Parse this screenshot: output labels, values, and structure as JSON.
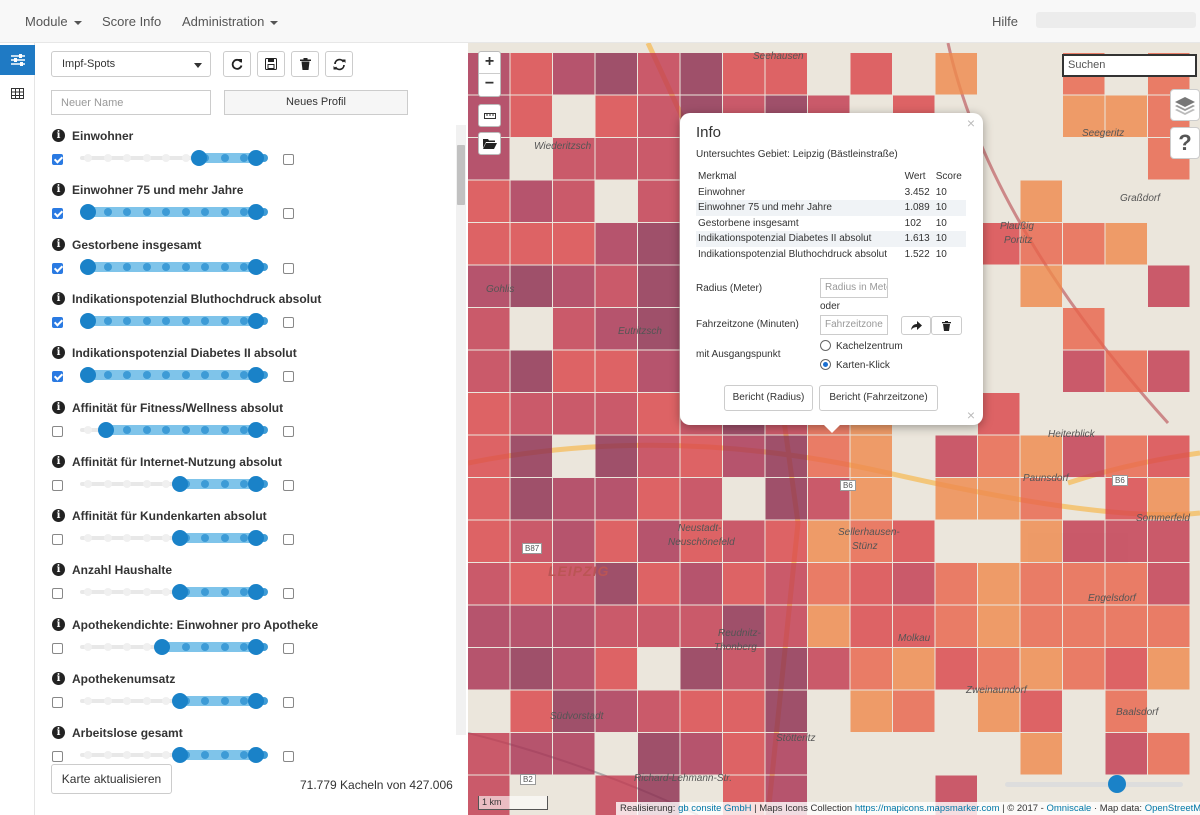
{
  "nav": {
    "module": "Module",
    "score_info": "Score Info",
    "administration": "Administration",
    "help": "Hilfe"
  },
  "profile": {
    "selected": "Impf-Spots",
    "name_placeholder": "Neuer Name",
    "new_profile": "Neues Profil"
  },
  "criteria": [
    {
      "label": "Einwohner",
      "checked": true,
      "low": 0.66,
      "high": 1.0,
      "right_checked": false
    },
    {
      "label": "Einwohner 75 und mehr Jahre",
      "checked": true,
      "low": 0.0,
      "high": 1.0,
      "right_checked": false
    },
    {
      "label": "Gestorbene insgesamt",
      "checked": true,
      "low": 0.0,
      "high": 1.0,
      "right_checked": false
    },
    {
      "label": "Indikationspotenzial Bluthochdruck absolut",
      "checked": true,
      "low": 0.0,
      "high": 1.0,
      "right_checked": false
    },
    {
      "label": "Indikationspotenzial Diabetes II absolut",
      "checked": true,
      "low": 0.0,
      "high": 1.0,
      "right_checked": false
    },
    {
      "label": "Affinität für Fitness/Wellness absolut",
      "checked": false,
      "low": 0.11,
      "high": 1.0,
      "right_checked": false
    },
    {
      "label": "Affinität für Internet-Nutzung absolut",
      "checked": false,
      "low": 0.55,
      "high": 1.0,
      "right_checked": false
    },
    {
      "label": "Affinität für Kundenkarten absolut",
      "checked": false,
      "low": 0.55,
      "high": 1.0,
      "right_checked": false
    },
    {
      "label": "Anzahl Haushalte",
      "checked": false,
      "low": 0.55,
      "high": 1.0,
      "right_checked": false
    },
    {
      "label": "Apothekendichte: Einwohner pro Apotheke",
      "checked": false,
      "low": 0.44,
      "high": 1.0,
      "right_checked": false
    },
    {
      "label": "Apothekenumsatz",
      "checked": false,
      "low": 0.55,
      "high": 1.0,
      "right_checked": false
    },
    {
      "label": "Arbeitslose gesamt",
      "checked": false,
      "low": 0.55,
      "high": 1.0,
      "right_checked": false
    }
  ],
  "update_button": "Karte aktualisieren",
  "tile_count": "71.779 Kacheln von 427.006",
  "map": {
    "search_placeholder": "Suchen",
    "zoom_in": "+",
    "zoom_out": "−",
    "scale": "1 km",
    "opacity_slider": 0.7,
    "labels": {
      "seehausen": "Seehausen",
      "seegeritz": "Seegeritz",
      "wiederitzsch": "Wiederitzsch",
      "grassdorf": "Graßdorf",
      "plaussig": "Plaußig",
      "portitz": "Portitz",
      "gohlis": "Gohlis",
      "eutritzsch": "Eutritzsch",
      "heiterblick": "Heiterblick",
      "paunsdorf": "Paunsdorf",
      "sommerfeld": "Sommerfeld",
      "neustadt": "Neustadt-",
      "neuschoenefeld": "Neuschönefeld",
      "sellerhausen": "Sellerhausen-",
      "stuenz": "Stünz",
      "engelsdorf": "Engelsdorf",
      "leipzig": "LEIPZIG",
      "reudnitz": "Reudnitz-",
      "thonberg": "Thonberg",
      "molkau": "Molkau",
      "zweinaundorf": "Zweinaundorf",
      "baalsdorf": "Baalsdorf",
      "suedvorstadt": "Südvorstadt",
      "stoetteritz": "Stötteritz",
      "richard": "Richard-Lehmann-Str.",
      "b6": "B6",
      "b2": "B2",
      "b87": "B87"
    },
    "attribution": {
      "pre": "Realisierung:",
      "gb": "gb consite GmbH",
      "mid": "| Maps Icons Collection",
      "micons": "https://mapicons.mapsmarker.com",
      "copy": "| © 2017 -",
      "omni": "Omniscale",
      "md": "· Map data:",
      "osm": "OpenStreetMap"
    }
  },
  "popup": {
    "title": "Info",
    "area": "Untersuchtes Gebiet: Leipzig (Bästleinstraße)",
    "headers": [
      "Merkmal",
      "Wert",
      "Score"
    ],
    "rows": [
      [
        "Einwohner",
        "3.452",
        "10"
      ],
      [
        "Einwohner 75 und mehr Jahre",
        "1.089",
        "10"
      ],
      [
        "Gestorbene insgesamt",
        "102",
        "10"
      ],
      [
        "Indikationspotenzial Diabetes II absolut",
        "1.613",
        "10"
      ],
      [
        "Indikationspotenzial Bluthochdruck absolut",
        "1.522",
        "10"
      ]
    ],
    "radius_label": "Radius (Meter)",
    "radius_placeholder": "Radius in Meter",
    "or": "oder",
    "drive_label": "Fahrzeitzone (Minuten)",
    "drive_placeholder": "Fahrzeitzone",
    "start_label": "mit Ausgangspunkt",
    "option1": "Kachelzentrum",
    "option2": "Karten-Klick",
    "selected_option": "Karten-Klick",
    "btn_radius": "Bericht (Radius)",
    "btn_drive": "Bericht (Fahrzeitzone)",
    "close": "×"
  }
}
